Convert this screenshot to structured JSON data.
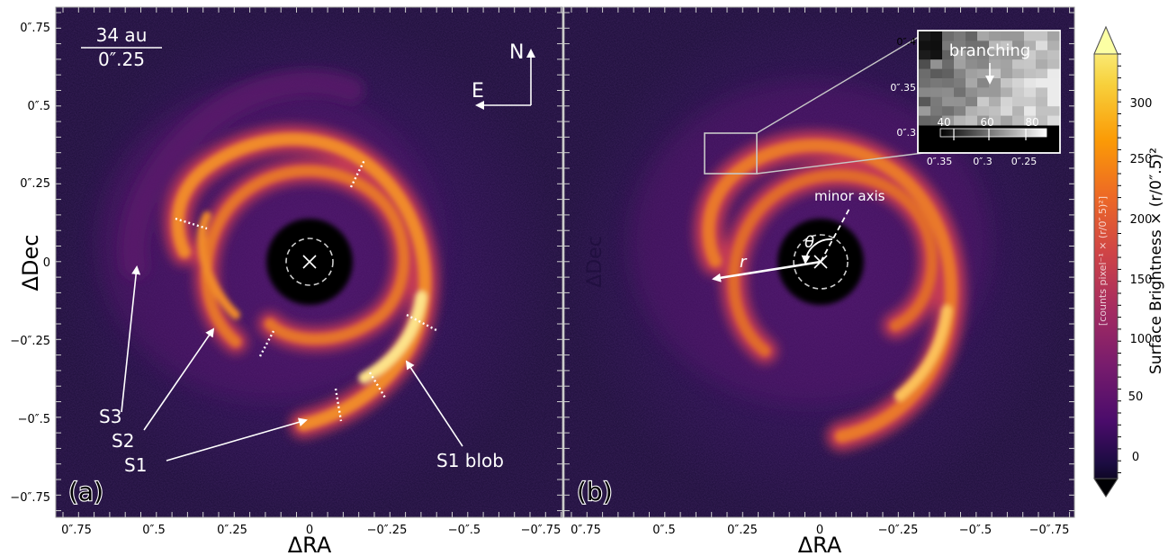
{
  "figure": {
    "panel_a": {
      "label": "(a)",
      "scale_bar": {
        "top": "34 au",
        "bottom": "0″.25"
      },
      "compass": {
        "north": "N",
        "east": "E"
      },
      "annotations": {
        "s3": "S3",
        "s2": "S2",
        "s1": "S1",
        "s1_blob": "S1 blob"
      },
      "ylabel": "ΔDec",
      "xlabel": "ΔRA",
      "y_ticks": [
        "0″.75",
        "0″.5",
        "0″.25",
        "0",
        "−0″.25",
        "−0″.5",
        "−0″.75"
      ],
      "x_ticks": [
        "0″.75",
        "0″.5",
        "0″.25",
        "0",
        "−0″.25",
        "−0″.5",
        "−0″.75"
      ]
    },
    "panel_b": {
      "label": "(b)",
      "ylabel": "ΔDec",
      "xlabel": "ΔRA",
      "annotations": {
        "minor_axis": "minor axis",
        "theta": "θ",
        "r": "r"
      },
      "x_ticks": [
        "0″.75",
        "0″.5",
        "0″.25",
        "0",
        "−0″.25",
        "−0″.5",
        "−0″.75"
      ],
      "inset": {
        "title": "branching",
        "y_ticks": [
          "0″.4",
          "0″.35",
          "0″.3"
        ],
        "x_ticks": [
          "0″.35",
          "0″.3",
          "0″.25"
        ],
        "colorbar_ticks": [
          "40",
          "60",
          "80"
        ]
      }
    },
    "colorbar": {
      "label": "Surface Brightness × (r/0″.5)²",
      "units": "[counts pixel⁻¹ × (r/0″.5)²]",
      "ticks": [
        "300",
        "250",
        "200",
        "150",
        "100",
        "50",
        "0"
      ],
      "colormap": [
        "#000004",
        "#1b0c41",
        "#4a0c6b",
        "#781c6d",
        "#a52c60",
        "#cf4446",
        "#ed6925",
        "#fb9b06",
        "#f7d13d",
        "#fcffa4"
      ]
    }
  }
}
